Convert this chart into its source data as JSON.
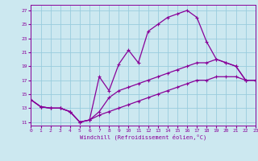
{
  "xlabel": "Windchill (Refroidissement éolien,°C)",
  "bg_color": "#cce8f0",
  "grid_color": "#99ccdd",
  "line_color": "#880099",
  "xlim": [
    0,
    23
  ],
  "ylim": [
    10.5,
    27.8
  ],
  "x_ticks": [
    0,
    1,
    2,
    3,
    4,
    5,
    6,
    7,
    8,
    9,
    10,
    11,
    12,
    13,
    14,
    15,
    16,
    17,
    18,
    19,
    20,
    21,
    22,
    23
  ],
  "y_ticks": [
    11,
    13,
    15,
    17,
    19,
    21,
    23,
    25,
    27
  ],
  "line1_x": [
    0,
    1,
    2,
    3,
    4,
    5,
    6,
    7,
    8,
    9,
    10,
    11,
    12,
    13,
    14,
    15,
    16,
    17,
    18,
    19,
    20,
    21,
    22,
    23
  ],
  "line1_y": [
    14.2,
    13.2,
    13.0,
    13.0,
    12.5,
    11.0,
    11.3,
    17.5,
    15.5,
    19.3,
    21.3,
    19.5,
    24.0,
    25.0,
    26.0,
    26.5,
    27.0,
    26.0,
    22.5,
    20.0,
    19.5,
    19.0,
    17.0,
    17.0
  ],
  "line2_x": [
    0,
    1,
    2,
    3,
    4,
    5,
    6,
    7,
    8,
    9,
    10,
    11,
    12,
    13,
    14,
    15,
    16,
    17,
    18,
    19,
    20,
    21,
    22,
    23
  ],
  "line2_y": [
    14.2,
    13.2,
    13.0,
    13.0,
    12.5,
    11.0,
    11.3,
    12.5,
    14.5,
    15.5,
    16.0,
    16.5,
    17.0,
    17.5,
    18.0,
    18.5,
    19.0,
    19.5,
    19.5,
    20.0,
    19.5,
    19.0,
    17.0,
    17.0
  ],
  "line3_x": [
    0,
    1,
    2,
    3,
    4,
    5,
    6,
    7,
    8,
    9,
    10,
    11,
    12,
    13,
    14,
    15,
    16,
    17,
    18,
    19,
    20,
    21,
    22,
    23
  ],
  "line3_y": [
    14.2,
    13.2,
    13.0,
    13.0,
    12.5,
    11.0,
    11.3,
    12.0,
    12.5,
    13.0,
    13.5,
    14.0,
    14.5,
    15.0,
    15.5,
    16.0,
    16.5,
    17.0,
    17.0,
    17.5,
    17.5,
    17.5,
    17.0,
    17.0
  ]
}
